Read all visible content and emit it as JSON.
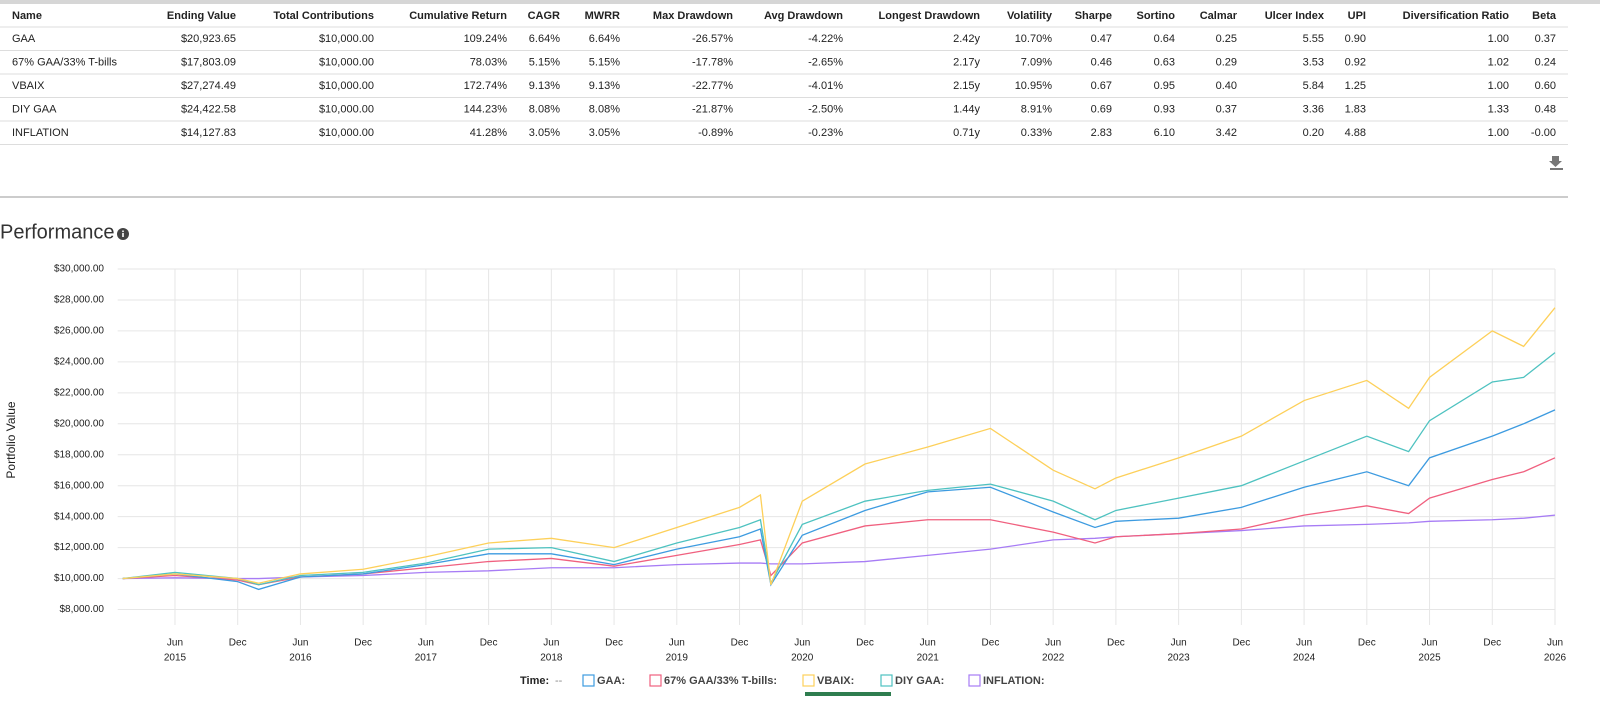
{
  "table": {
    "columns": [
      "Name",
      "Ending Value",
      "Total Contributions",
      "Cumulative Return",
      "CAGR",
      "MWRR",
      "Max Drawdown",
      "Avg Drawdown",
      "Longest Drawdown",
      "Volatility",
      "Sharpe",
      "Sortino",
      "Calmar",
      "Ulcer Index",
      "UPI",
      "Diversification Ratio",
      "Beta"
    ],
    "rows": [
      [
        "GAA",
        "$20,923.65",
        "$10,000.00",
        "109.24%",
        "6.64%",
        "6.64%",
        "-26.57%",
        "-4.22%",
        "2.42y",
        "10.70%",
        "0.47",
        "0.64",
        "0.25",
        "5.55",
        "0.90",
        "1.00",
        "0.37"
      ],
      [
        "67% GAA/33% T-bills",
        "$17,803.09",
        "$10,000.00",
        "78.03%",
        "5.15%",
        "5.15%",
        "-17.78%",
        "-2.65%",
        "2.17y",
        "7.09%",
        "0.46",
        "0.63",
        "0.29",
        "3.53",
        "0.92",
        "1.02",
        "0.24"
      ],
      [
        "VBAIX",
        "$27,274.49",
        "$10,000.00",
        "172.74%",
        "9.13%",
        "9.13%",
        "-22.77%",
        "-4.01%",
        "2.15y",
        "10.95%",
        "0.67",
        "0.95",
        "0.40",
        "5.84",
        "1.25",
        "1.00",
        "0.60"
      ],
      [
        "DIY GAA",
        "$24,422.58",
        "$10,000.00",
        "144.23%",
        "8.08%",
        "8.08%",
        "-21.87%",
        "-2.50%",
        "1.44y",
        "8.91%",
        "0.69",
        "0.93",
        "0.37",
        "3.36",
        "1.83",
        "1.33",
        "0.48"
      ],
      [
        "INFLATION",
        "$14,127.83",
        "$10,000.00",
        "41.28%",
        "3.05%",
        "3.05%",
        "-0.89%",
        "-0.23%",
        "0.71y",
        "0.33%",
        "2.83",
        "6.10",
        "3.42",
        "0.20",
        "4.88",
        "1.00",
        "-0.00"
      ]
    ]
  },
  "chart_data": {
    "type": "line",
    "title": "Performance",
    "y_label": "Portfolio Value",
    "time_label": "Time:",
    "time_value": "--",
    "grid": true,
    "x": [
      "2015-01",
      "2015-06",
      "2015-12",
      "2016-02",
      "2016-06",
      "2016-12",
      "2017-06",
      "2017-12",
      "2018-06",
      "2018-12",
      "2019-06",
      "2019-12",
      "2020-02",
      "2020-03",
      "2020-06",
      "2020-12",
      "2021-06",
      "2021-12",
      "2022-06",
      "2022-10",
      "2022-12",
      "2023-06",
      "2023-12",
      "2024-06",
      "2024-12",
      "2025-04",
      "2025-06",
      "2025-12",
      "2026-03",
      "2026-06"
    ],
    "xlim": [
      "2015-01",
      "2026-06"
    ],
    "xticks": [
      {
        "value": "2015-06",
        "label": "Jun",
        "sublabel": "2015"
      },
      {
        "value": "2015-12",
        "label": "Dec"
      },
      {
        "value": "2016-06",
        "label": "Jun",
        "sublabel": "2016"
      },
      {
        "value": "2016-12",
        "label": "Dec"
      },
      {
        "value": "2017-06",
        "label": "Jun",
        "sublabel": "2017"
      },
      {
        "value": "2017-12",
        "label": "Dec"
      },
      {
        "value": "2018-06",
        "label": "Jun",
        "sublabel": "2018"
      },
      {
        "value": "2018-12",
        "label": "Dec"
      },
      {
        "value": "2019-06",
        "label": "Jun",
        "sublabel": "2019"
      },
      {
        "value": "2019-12",
        "label": "Dec"
      },
      {
        "value": "2020-06",
        "label": "Jun",
        "sublabel": "2020"
      },
      {
        "value": "2020-12",
        "label": "Dec"
      },
      {
        "value": "2021-06",
        "label": "Jun",
        "sublabel": "2021"
      },
      {
        "value": "2021-12",
        "label": "Dec"
      },
      {
        "value": "2022-06",
        "label": "Jun",
        "sublabel": "2022"
      },
      {
        "value": "2022-12",
        "label": "Dec"
      },
      {
        "value": "2023-06",
        "label": "Jun",
        "sublabel": "2023"
      },
      {
        "value": "2023-12",
        "label": "Dec"
      },
      {
        "value": "2024-06",
        "label": "Jun",
        "sublabel": "2024"
      },
      {
        "value": "2024-12",
        "label": "Dec"
      },
      {
        "value": "2025-06",
        "label": "Jun",
        "sublabel": "2025"
      },
      {
        "value": "2025-12",
        "label": "Dec"
      },
      {
        "value": "2026-06",
        "label": "Jun",
        "sublabel": "2026"
      }
    ],
    "ylim": [
      7000,
      30000
    ],
    "yticks": [
      {
        "value": 8000,
        "label": "$8,000.00"
      },
      {
        "value": 10000,
        "label": "$10,000.00"
      },
      {
        "value": 12000,
        "label": "$12,000.00"
      },
      {
        "value": 14000,
        "label": "$14,000.00"
      },
      {
        "value": 16000,
        "label": "$16,000.00"
      },
      {
        "value": 18000,
        "label": "$18,000.00"
      },
      {
        "value": 20000,
        "label": "$20,000.00"
      },
      {
        "value": 22000,
        "label": "$22,000.00"
      },
      {
        "value": 24000,
        "label": "$24,000.00"
      },
      {
        "value": 26000,
        "label": "$26,000.00"
      },
      {
        "value": 28000,
        "label": "$28,000.00"
      },
      {
        "value": 30000,
        "label": "$30,000.00"
      }
    ],
    "series": [
      {
        "name": "INFLATION:",
        "color": "#a77cf5",
        "values": [
          10000,
          10050,
          10000,
          10000,
          10100,
          10200,
          10400,
          10500,
          10700,
          10700,
          10900,
          11000,
          11000,
          10950,
          10950,
          11100,
          11500,
          11900,
          12500,
          12600,
          12700,
          12900,
          13100,
          13400,
          13500,
          13600,
          13700,
          13800,
          13900,
          14100
        ]
      },
      {
        "name": "67% GAA/33% T-bills:",
        "color": "#f0607f",
        "values": [
          10000,
          10200,
          9900,
          9600,
          10100,
          10300,
          10700,
          11100,
          11300,
          10800,
          11500,
          12200,
          12500,
          10200,
          12300,
          13400,
          13800,
          13800,
          13000,
          12300,
          12700,
          12900,
          13200,
          14100,
          14700,
          14200,
          15200,
          16400,
          16900,
          17800
        ]
      },
      {
        "name": "GAA:",
        "color": "#3d9be0",
        "values": [
          10000,
          10300,
          9800,
          9300,
          10100,
          10300,
          10900,
          11600,
          11600,
          10900,
          11900,
          12700,
          13200,
          9600,
          12800,
          14400,
          15600,
          15900,
          14300,
          13300,
          13700,
          13900,
          14600,
          15900,
          16900,
          16000,
          17800,
          19200,
          20000,
          20900
        ]
      },
      {
        "name": "DIY GAA:",
        "color": "#4ec2c0",
        "values": [
          10000,
          10400,
          10000,
          9600,
          10200,
          10400,
          11000,
          11900,
          12000,
          11100,
          12300,
          13300,
          13800,
          9700,
          13500,
          15000,
          15700,
          16100,
          15000,
          13800,
          14400,
          15200,
          16000,
          17600,
          19200,
          18200,
          20200,
          22700,
          23000,
          24600
        ]
      },
      {
        "name": "VBAIX:",
        "color": "#fdd05a",
        "values": [
          10000,
          10300,
          10000,
          9700,
          10300,
          10600,
          11400,
          12300,
          12600,
          12000,
          13300,
          14600,
          15400,
          9600,
          15000,
          17400,
          18500,
          19700,
          17000,
          15800,
          16500,
          17800,
          19200,
          21500,
          22800,
          21000,
          23000,
          26000,
          25000,
          27500
        ]
      }
    ],
    "legend_order": [
      2,
      1,
      4,
      3,
      0
    ]
  }
}
